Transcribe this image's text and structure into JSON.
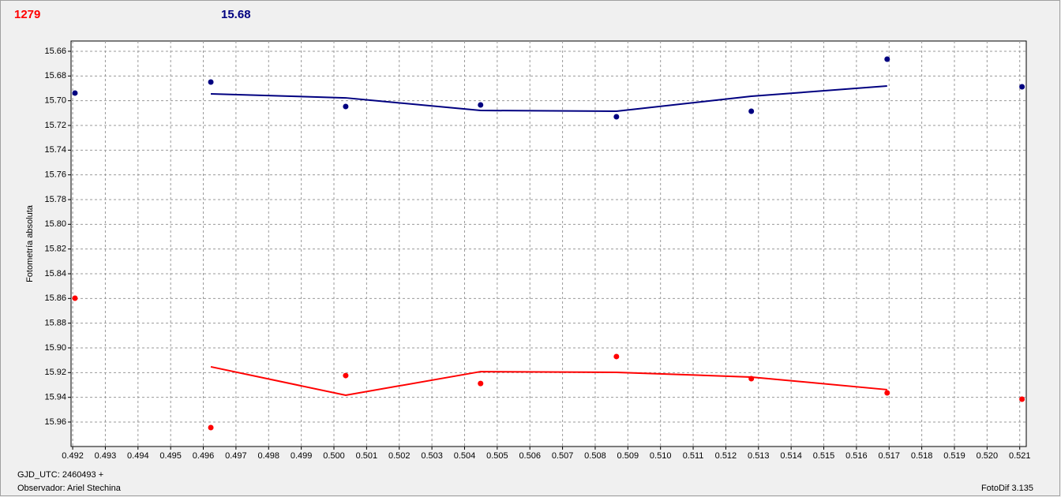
{
  "header": {
    "left_value": "1279",
    "right_value": "15.68"
  },
  "chart_data": {
    "type": "scatter",
    "y_label": "Fotometría absoluta",
    "xlim": [
      0.49195,
      0.5212
    ],
    "ylim": [
      15.9798,
      15.6517
    ],
    "grid": true,
    "xticks": [
      0.492,
      0.493,
      0.494,
      0.495,
      0.496,
      0.497,
      0.498,
      0.499,
      {
        "value": 0.5,
        "label": "0.500"
      },
      0.501,
      0.502,
      0.503,
      0.504,
      0.505,
      0.506,
      0.507,
      0.508,
      0.509,
      {
        "value": 0.51,
        "label": "0.510"
      },
      0.511,
      0.512,
      0.513,
      0.514,
      0.515,
      0.516,
      0.517,
      0.518,
      0.519,
      {
        "value": 0.52,
        "label": "0.520"
      },
      0.521
    ],
    "yticks": [
      15.66,
      15.68,
      {
        "value": 15.7,
        "label": "15.70"
      },
      15.72,
      15.74,
      15.76,
      15.78,
      {
        "value": 15.8,
        "label": "15.80"
      },
      15.82,
      15.84,
      15.86,
      15.88,
      {
        "value": 15.9,
        "label": "15.90"
      },
      15.92,
      15.94,
      15.96
    ],
    "series": [
      {
        "mode": "markers",
        "color": "#000080",
        "x": [
          0.49207,
          0.49623,
          0.50036,
          0.50449,
          0.50865,
          0.51278,
          0.51694,
          0.52107
        ],
        "values": [
          15.6938,
          15.6849,
          15.7047,
          15.7034,
          15.713,
          15.7085,
          15.6664,
          15.6887
        ]
      },
      {
        "mode": "line",
        "color": "#000080",
        "x": [
          0.49623,
          0.50036,
          0.50449,
          0.50865,
          0.51278,
          0.51694
        ],
        "values": [
          15.6945,
          15.6977,
          15.7079,
          15.7085,
          15.6964,
          15.6881
        ]
      },
      {
        "mode": "markers",
        "color": "#ff0000",
        "x": [
          0.49207,
          0.49623,
          0.50036,
          0.50449,
          0.50865,
          0.51278,
          0.51694,
          0.52107
        ],
        "values": [
          15.8598,
          15.9645,
          15.9224,
          15.9288,
          15.907,
          15.9249,
          15.9364,
          15.9415
        ]
      },
      {
        "mode": "line",
        "color": "#ff0000",
        "x": [
          0.49623,
          0.50036,
          0.50449,
          0.50865,
          0.51278,
          0.51694
        ],
        "values": [
          15.9153,
          15.9383,
          15.9192,
          15.9198,
          15.9236,
          15.9338
        ]
      }
    ]
  },
  "footer": {
    "origin": "GJD_UTC: 2460493 +",
    "observer": "Observador: Ariel Stechina",
    "software": "FotoDif 3.135"
  }
}
